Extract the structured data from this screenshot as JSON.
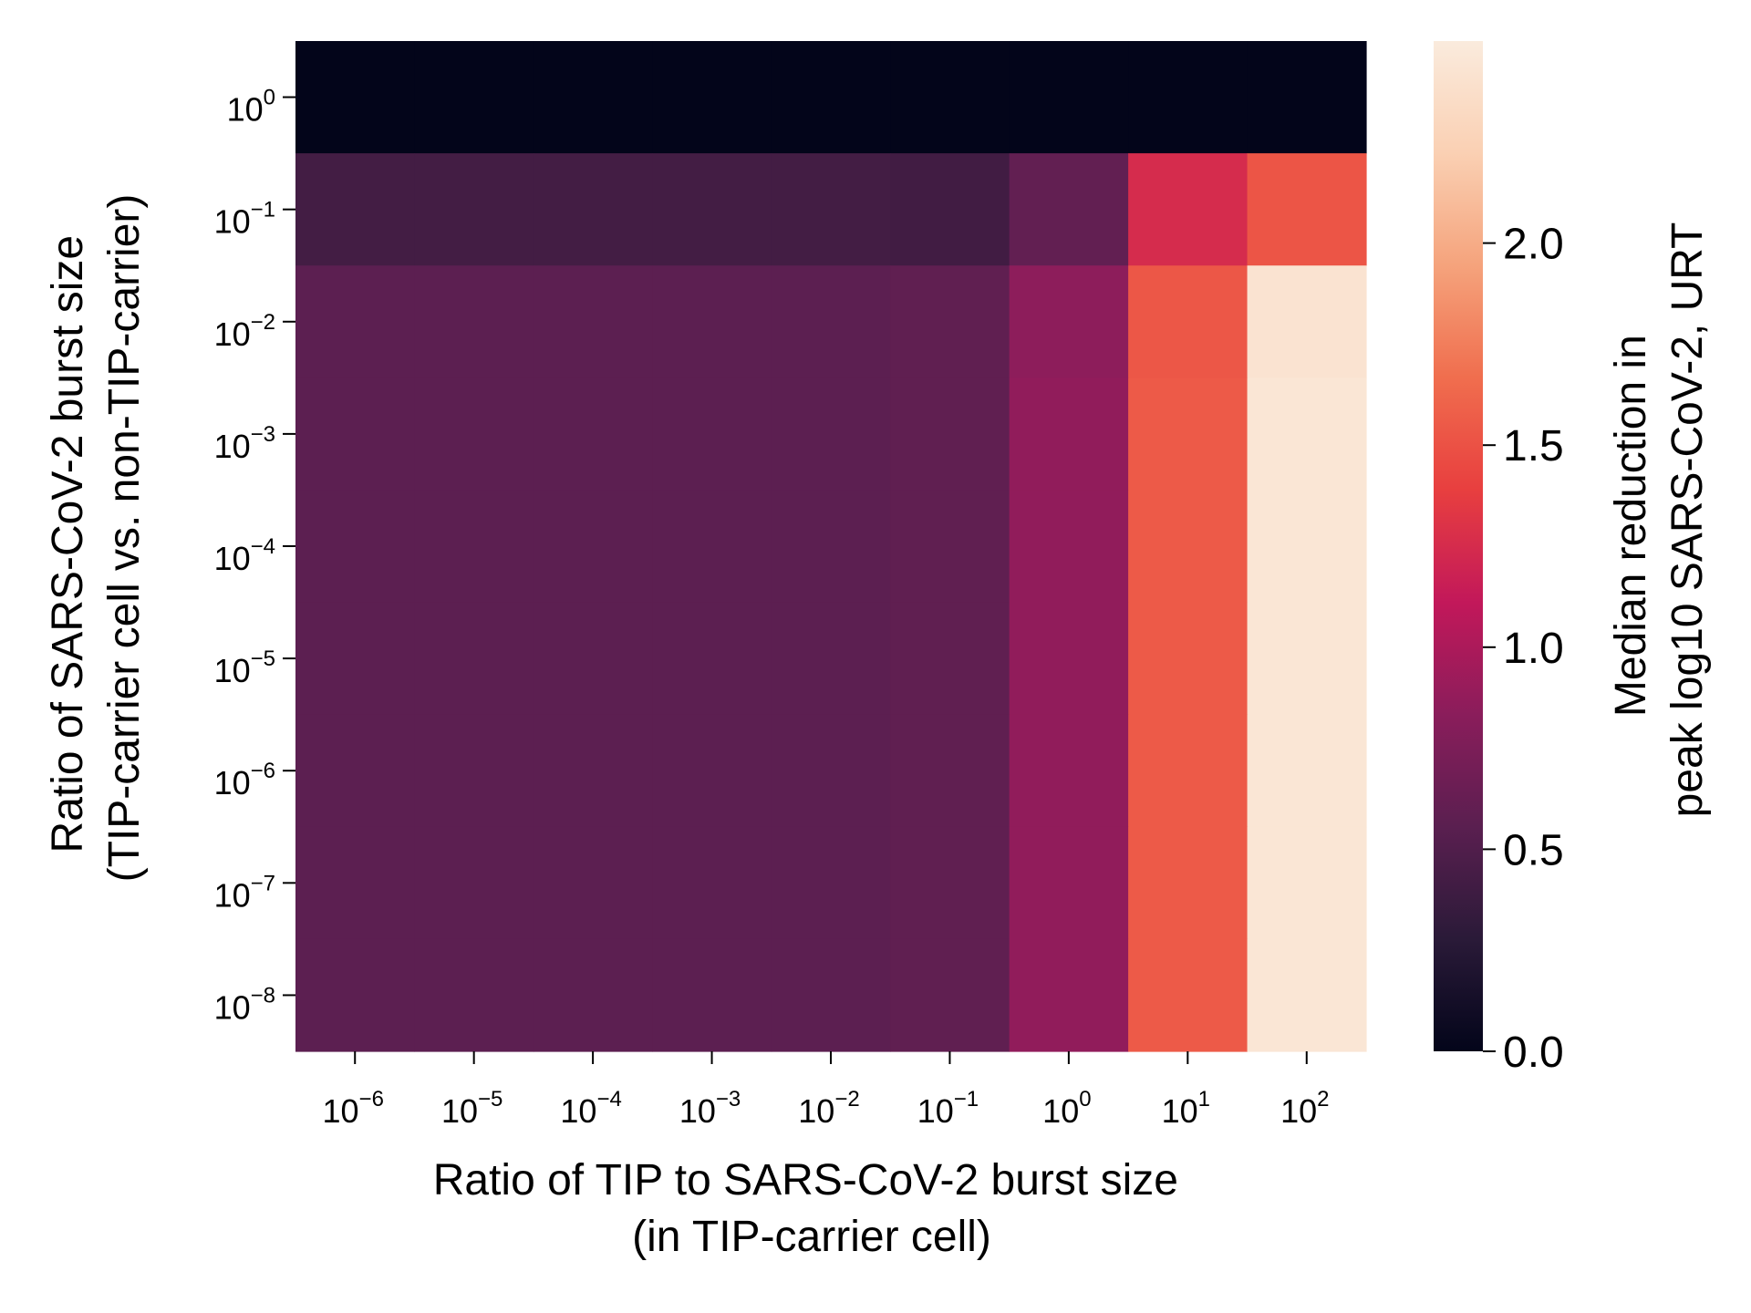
{
  "chart_data": {
    "type": "heatmap",
    "xlabel": [
      "Ratio of TIP to SARS-CoV-2 burst size",
      "(in TIP-carrier cell)"
    ],
    "ylabel": [
      "Ratio of SARS-CoV-2 burst size",
      "(TIP-carrier cell vs. non-TIP-carrier)"
    ],
    "x_categories": [
      {
        "base": "10",
        "exp": "−6"
      },
      {
        "base": "10",
        "exp": "−5"
      },
      {
        "base": "10",
        "exp": "−4"
      },
      {
        "base": "10",
        "exp": "−3"
      },
      {
        "base": "10",
        "exp": "−2"
      },
      {
        "base": "10",
        "exp": "−1"
      },
      {
        "base": "10",
        "exp": "0"
      },
      {
        "base": "10",
        "exp": "1"
      },
      {
        "base": "10",
        "exp": "2"
      }
    ],
    "y_categories": [
      {
        "base": "10",
        "exp": "0"
      },
      {
        "base": "10",
        "exp": "−1"
      },
      {
        "base": "10",
        "exp": "−2"
      },
      {
        "base": "10",
        "exp": "−3"
      },
      {
        "base": "10",
        "exp": "−4"
      },
      {
        "base": "10",
        "exp": "−5"
      },
      {
        "base": "10",
        "exp": "−6"
      },
      {
        "base": "10",
        "exp": "−7"
      },
      {
        "base": "10",
        "exp": "−8"
      }
    ],
    "values": [
      [
        0.0,
        0.0,
        0.0,
        0.0,
        0.0,
        0.0,
        0.0,
        0.0,
        0.0
      ],
      [
        0.42,
        0.42,
        0.42,
        0.42,
        0.42,
        0.41,
        0.6,
        1.25,
        1.52
      ],
      [
        0.57,
        0.57,
        0.57,
        0.57,
        0.57,
        0.59,
        0.85,
        1.53,
        2.42
      ],
      [
        0.57,
        0.57,
        0.57,
        0.57,
        0.57,
        0.59,
        0.87,
        1.55,
        2.45
      ],
      [
        0.57,
        0.57,
        0.57,
        0.57,
        0.57,
        0.59,
        0.87,
        1.55,
        2.45
      ],
      [
        0.57,
        0.57,
        0.57,
        0.57,
        0.57,
        0.59,
        0.87,
        1.55,
        2.45
      ],
      [
        0.57,
        0.57,
        0.57,
        0.57,
        0.57,
        0.59,
        0.87,
        1.55,
        2.45
      ],
      [
        0.57,
        0.57,
        0.57,
        0.57,
        0.57,
        0.59,
        0.87,
        1.55,
        2.45
      ],
      [
        0.57,
        0.57,
        0.57,
        0.57,
        0.57,
        0.59,
        0.87,
        1.55,
        2.45
      ]
    ],
    "colorbar": {
      "label": [
        "Median reduction in",
        "peak log10 SARS-CoV-2, URT"
      ],
      "range": [
        0.0,
        2.5
      ],
      "ticks": [
        "0.0",
        "0.5",
        "1.0",
        "1.5",
        "2.0"
      ],
      "colormap": "rocket",
      "colormap_stops": [
        "#03051a",
        "#2a1a38",
        "#5a1f50",
        "#8a1d5b",
        "#c2185a",
        "#e83f3f",
        "#f06e4e",
        "#f5a37c",
        "#fad0b3",
        "#faebdd"
      ]
    },
    "grid": false
  }
}
